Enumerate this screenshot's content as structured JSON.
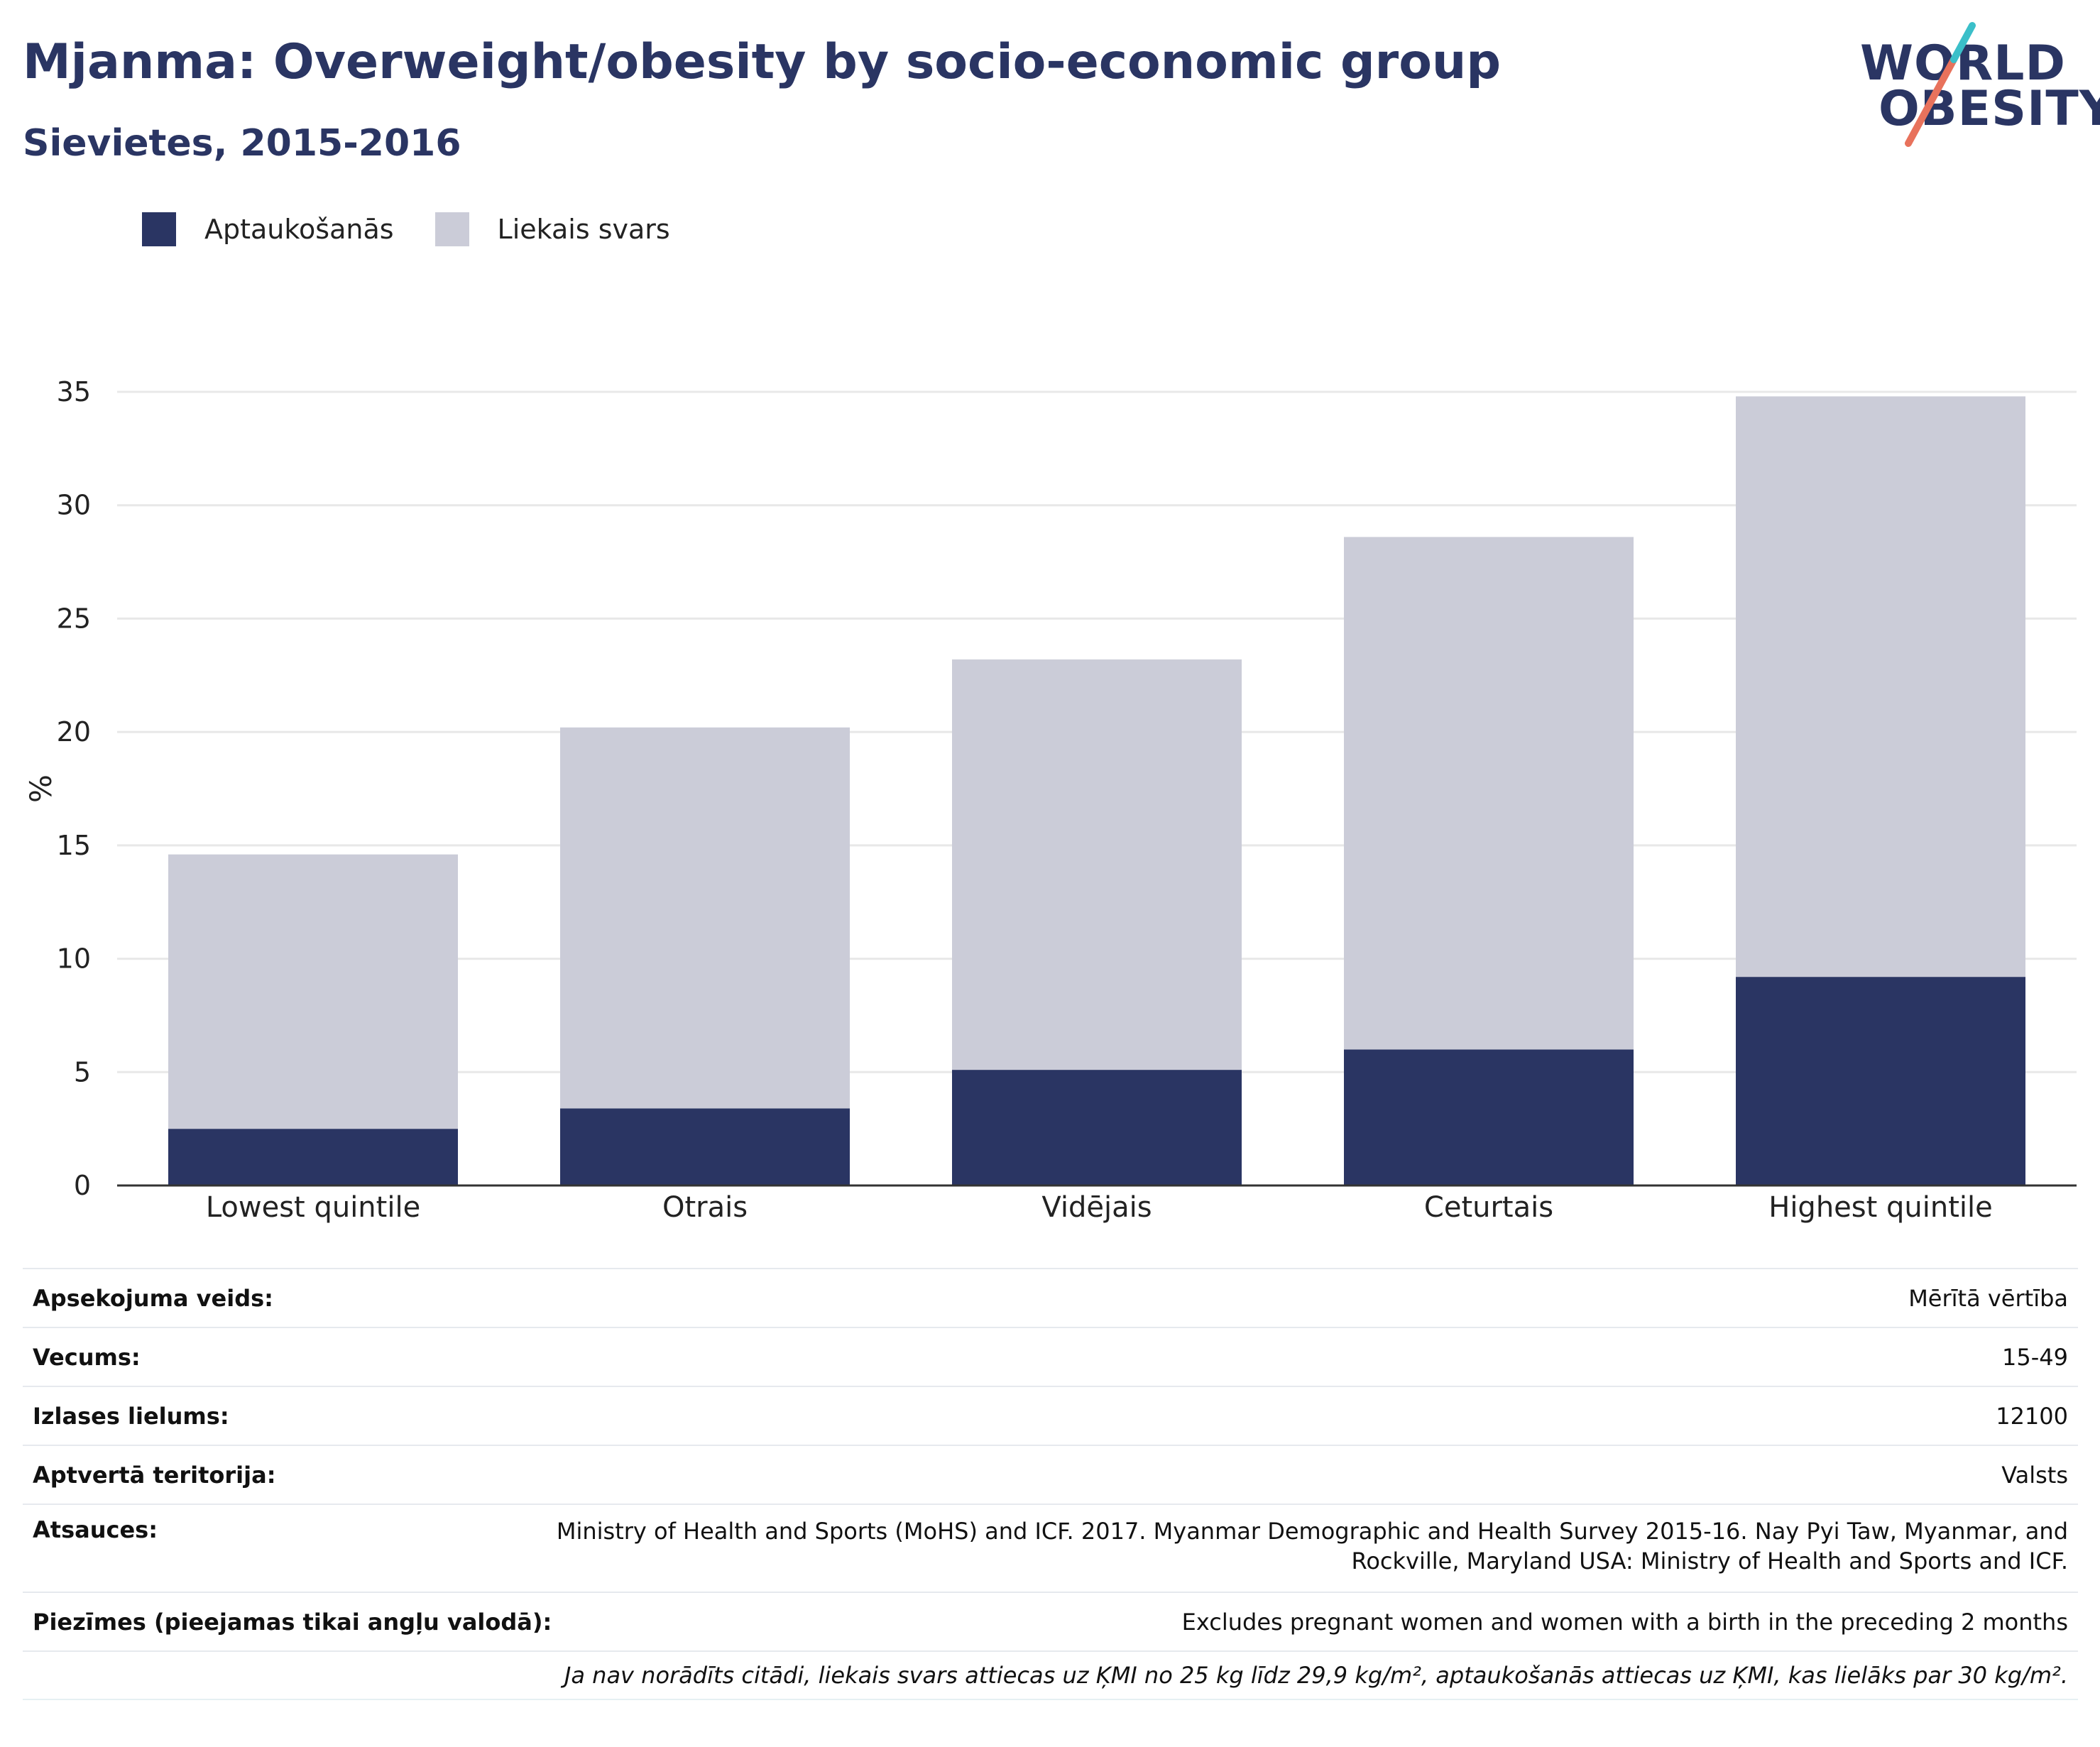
{
  "header": {
    "title": "Mjanma: Overweight/obesity by socio-economic group",
    "subtitle": "Sievietes, 2015-2016"
  },
  "logo": {
    "line1": "WORLD",
    "line2": "OBESITY"
  },
  "colors": {
    "obesity": "#2a3563",
    "overweight": "#cbccd8",
    "accent_teal": "#3bbfc9",
    "accent_coral": "#e8725c",
    "grid": "#e8e8e8"
  },
  "legend": [
    {
      "label": "Aptaukošanās",
      "color": "#2a3563"
    },
    {
      "label": "Liekais svars",
      "color": "#cbccd8"
    }
  ],
  "chart_data": {
    "type": "bar",
    "stacked": true,
    "ylabel": "%",
    "ylim": [
      0,
      35
    ],
    "yticks": [
      0,
      5,
      10,
      15,
      20,
      25,
      30,
      35
    ],
    "grid": true,
    "categories": [
      "Lowest quintile",
      "Otrais",
      "Vidējais",
      "Ceturtais",
      "Highest quintile"
    ],
    "series": [
      {
        "name": "Aptaukošanās",
        "values": [
          2.5,
          3.4,
          5.1,
          6.0,
          9.2
        ]
      },
      {
        "name": "Liekais svars",
        "values": [
          12.1,
          16.8,
          18.1,
          22.6,
          25.6
        ]
      }
    ]
  },
  "meta": [
    {
      "label": "Apsekojuma veids:",
      "value": "Mērītā vērtība"
    },
    {
      "label": "Vecums:",
      "value": "15-49"
    },
    {
      "label": "Izlases lielums:",
      "value": "12100"
    },
    {
      "label": "Aptvertā teritorija:",
      "value": "Valsts"
    },
    {
      "label": "Atsauces:",
      "value_lines": [
        "Ministry of Health and Sports (MoHS) and ICF. 2017. Myanmar Demographic and Health Survey 2015-16. Nay Pyi Taw, Myanmar, and",
        "Rockville, Maryland USA: Ministry of Health and Sports and ICF."
      ]
    },
    {
      "label": "Piezīmes (pieejamas tikai angļu valodā):",
      "value": "Excludes pregnant women and women with a birth in the preceding 2 months"
    }
  ],
  "footnote": "Ja nav norādīts citādi, liekais svars attiecas uz ĶMI no 25 kg līdz 29,9 kg/m², aptaukošanās attiecas uz ĶMI, kas lielāks par 30 kg/m²."
}
